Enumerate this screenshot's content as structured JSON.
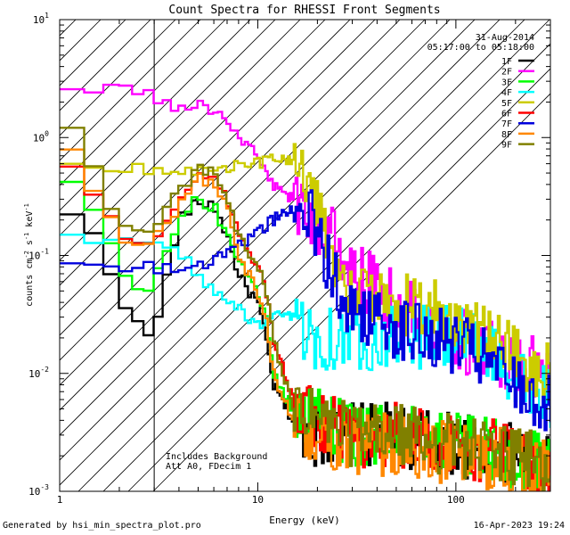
{
  "chart_data": {
    "type": "line",
    "title": "Count Spectra for RHESSI Front Segments",
    "xlabel": "Energy (keV)",
    "ylabel": "counts cm-2 s-1 keV-1",
    "xscale": "log",
    "yscale": "log",
    "xlim": [
      1,
      300
    ],
    "ylim": [
      0.001,
      10
    ],
    "x_ticks": [
      {
        "v": 1,
        "label": "1"
      },
      {
        "v": 10,
        "label": "10"
      },
      {
        "v": 100,
        "label": "100"
      }
    ],
    "y_ticks": [
      {
        "v": 10,
        "base": "10",
        "exp": "1"
      },
      {
        "v": 1,
        "base": "10",
        "exp": "0"
      },
      {
        "v": 0.1,
        "base": "10",
        "exp": "-1"
      },
      {
        "v": 0.01,
        "base": "10",
        "exp": "-2"
      },
      {
        "v": 0.001,
        "base": "10",
        "exp": "-3"
      }
    ],
    "date": "31-Aug-2014",
    "time_range": "05:17:00 to 05:18:00",
    "hatched_below_kev": 3,
    "annotations": [
      "Includes Background",
      "Att A0, FDecim 1"
    ],
    "series": [
      {
        "name": "1F",
        "color": "#000000",
        "x": [
          1,
          1.3,
          1.6,
          2.0,
          2.5,
          3.0,
          4,
          5,
          6,
          7,
          8,
          9,
          10,
          11,
          12,
          15,
          20,
          30,
          50,
          100,
          200,
          300
        ],
        "y": [
          0.2,
          0.22,
          0.13,
          0.05,
          0.025,
          0.02,
          0.2,
          0.28,
          0.27,
          0.15,
          0.07,
          0.05,
          0.04,
          0.02,
          0.008,
          0.004,
          0.003,
          0.003,
          0.003,
          0.0025,
          0.002,
          0.0015
        ]
      },
      {
        "name": "2F",
        "color": "#ff00ff",
        "x": [
          1,
          1.4,
          2,
          3,
          4,
          5,
          6,
          7,
          8,
          10,
          12,
          15,
          20,
          30,
          40,
          50,
          70,
          100,
          150,
          200,
          300
        ],
        "y": [
          3,
          2.7,
          2.6,
          2.2,
          1.7,
          2.0,
          1.6,
          1.4,
          1.0,
          0.7,
          0.4,
          0.3,
          0.2,
          0.08,
          0.05,
          0.04,
          0.03,
          0.02,
          0.015,
          0.012,
          0.01
        ]
      },
      {
        "name": "3F",
        "color": "#00ff00",
        "x": [
          1,
          1.3,
          1.6,
          2.0,
          2.5,
          3.0,
          4,
          5,
          6,
          7,
          8,
          9,
          10,
          11,
          12,
          15,
          20,
          30,
          50,
          100,
          200,
          300
        ],
        "y": [
          0.6,
          0.35,
          0.2,
          0.09,
          0.05,
          0.06,
          0.2,
          0.3,
          0.26,
          0.15,
          0.09,
          0.06,
          0.05,
          0.03,
          0.01,
          0.005,
          0.004,
          0.003,
          0.003,
          0.0025,
          0.002,
          0.0015
        ]
      },
      {
        "name": "4F",
        "color": "#00ffff",
        "x": [
          1,
          1.5,
          2,
          3,
          4,
          5,
          6,
          7,
          8,
          10,
          12,
          15,
          20,
          30,
          40,
          50,
          70,
          100,
          150,
          200,
          300
        ],
        "y": [
          0.15,
          0.14,
          0.13,
          0.12,
          0.11,
          0.07,
          0.05,
          0.04,
          0.035,
          0.025,
          0.03,
          0.03,
          0.02,
          0.02,
          0.02,
          0.02,
          0.02,
          0.02,
          0.015,
          0.01,
          0.006
        ]
      },
      {
        "name": "5F",
        "color": "#cccc00",
        "x": [
          1,
          2,
          3,
          5,
          7,
          10,
          12,
          14,
          16,
          18,
          20,
          22,
          25,
          28,
          30,
          40,
          50,
          70,
          100,
          150,
          200,
          300
        ],
        "y": [
          0.55,
          0.53,
          0.55,
          0.53,
          0.55,
          0.6,
          0.65,
          0.65,
          0.6,
          0.5,
          0.3,
          0.15,
          0.08,
          0.05,
          0.045,
          0.04,
          0.04,
          0.035,
          0.03,
          0.02,
          0.015,
          0.01
        ]
      },
      {
        "name": "6F",
        "color": "#ff0000",
        "x": [
          1,
          1.3,
          1.6,
          2.0,
          2.5,
          3.0,
          4,
          5,
          6,
          7,
          8,
          9,
          10,
          11,
          12,
          15,
          20,
          30,
          50,
          100,
          200,
          300
        ],
        "y": [
          0.8,
          0.5,
          0.3,
          0.15,
          0.12,
          0.13,
          0.3,
          0.5,
          0.45,
          0.3,
          0.15,
          0.1,
          0.08,
          0.05,
          0.02,
          0.006,
          0.004,
          0.003,
          0.003,
          0.0025,
          0.002,
          0.0015
        ]
      },
      {
        "name": "7F",
        "color": "#0000dd",
        "x": [
          1,
          1.5,
          2,
          3,
          4,
          5,
          6,
          7,
          8,
          10,
          12,
          15,
          18,
          20,
          25,
          30,
          40,
          50,
          70,
          100,
          150,
          200,
          300
        ],
        "y": [
          0.09,
          0.08,
          0.075,
          0.08,
          0.075,
          0.08,
          0.09,
          0.11,
          0.12,
          0.16,
          0.2,
          0.25,
          0.22,
          0.15,
          0.06,
          0.035,
          0.03,
          0.025,
          0.02,
          0.018,
          0.012,
          0.008,
          0.005
        ]
      },
      {
        "name": "8F",
        "color": "#ff8800",
        "x": [
          1,
          1.3,
          1.6,
          2.0,
          2.5,
          3.0,
          4,
          5,
          6,
          7,
          8,
          9,
          10,
          11,
          12,
          15,
          20,
          30,
          50,
          100,
          200,
          300
        ],
        "y": [
          1.0,
          0.6,
          0.3,
          0.15,
          0.12,
          0.13,
          0.25,
          0.45,
          0.4,
          0.25,
          0.1,
          0.07,
          0.05,
          0.03,
          0.01,
          0.004,
          0.003,
          0.0025,
          0.0025,
          0.002,
          0.0018,
          0.0015
        ]
      },
      {
        "name": "9F",
        "color": "#808000",
        "x": [
          1,
          1.3,
          1.6,
          2.0,
          2.5,
          3.0,
          4,
          5,
          6,
          7,
          8,
          9,
          10,
          11,
          12,
          15,
          20,
          30,
          50,
          100,
          200,
          300
        ],
        "y": [
          2.0,
          1.0,
          0.4,
          0.2,
          0.15,
          0.16,
          0.35,
          0.55,
          0.5,
          0.3,
          0.15,
          0.1,
          0.08,
          0.05,
          0.02,
          0.005,
          0.004,
          0.003,
          0.003,
          0.0025,
          0.002,
          0.0015
        ]
      }
    ]
  },
  "footer": {
    "generated_by": "Generated by hsi_min_spectra_plot.pro",
    "timestamp": "16-Apr-2023 19:24"
  }
}
